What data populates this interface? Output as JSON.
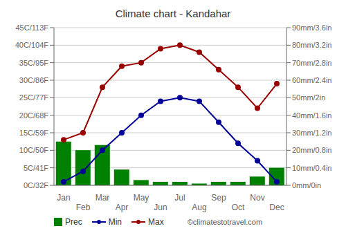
{
  "chart_data": {
    "type": "bar",
    "title": "Climate chart - Kandahar",
    "categories": [
      "Jan",
      "Feb",
      "Mar",
      "Apr",
      "May",
      "Jun",
      "Jul",
      "Aug",
      "Sep",
      "Oct",
      "Nov",
      "Dec"
    ],
    "series": [
      {
        "name": "Prec",
        "type": "bar",
        "axis": "y2",
        "color": "#008000",
        "values": [
          25,
          20,
          23,
          9,
          3,
          2,
          2,
          1,
          2,
          2,
          5,
          10
        ]
      },
      {
        "name": "Min",
        "type": "line",
        "color": "#000099",
        "marker": "circle",
        "values": [
          1,
          4,
          10,
          15,
          20,
          24,
          25,
          24,
          18,
          12,
          7,
          1
        ]
      },
      {
        "name": "Max",
        "type": "line",
        "color": "#990000",
        "marker": "circle",
        "values": [
          13,
          15,
          28,
          34,
          35,
          39,
          40,
          38,
          33,
          28,
          22,
          29
        ]
      }
    ],
    "ylim": [
      0,
      45
    ],
    "yticks": [
      {
        "value": 0,
        "label": "0C/32F"
      },
      {
        "value": 5,
        "label": "5C/41F"
      },
      {
        "value": 10,
        "label": "10C/50F"
      },
      {
        "value": 15,
        "label": "15C/59F"
      },
      {
        "value": 20,
        "label": "20C/68F"
      },
      {
        "value": 25,
        "label": "25C/77F"
      },
      {
        "value": 30,
        "label": "30C/86F"
      },
      {
        "value": 35,
        "label": "35C/95F"
      },
      {
        "value": 40,
        "label": "40C/104F"
      },
      {
        "value": 45,
        "label": "45C/113F"
      }
    ],
    "y2lim": [
      0,
      90
    ],
    "y2ticks": [
      {
        "value": 0,
        "label": "0mm/0in"
      },
      {
        "value": 10,
        "label": "10mm/0.4in"
      },
      {
        "value": 20,
        "label": "20mm/0.8in"
      },
      {
        "value": 30,
        "label": "30mm/1.2in"
      },
      {
        "value": 40,
        "label": "40mm/1.6in"
      },
      {
        "value": 50,
        "label": "50mm/2in"
      },
      {
        "value": 60,
        "label": "60mm/2.4in"
      },
      {
        "value": 70,
        "label": "70mm/2.8in"
      },
      {
        "value": 80,
        "label": "80mm/3.2in"
      },
      {
        "value": 90,
        "label": "90mm/3.6in"
      }
    ],
    "grid": true,
    "legend": "lower left",
    "annotations": [
      "©climatestotravel.com"
    ]
  }
}
